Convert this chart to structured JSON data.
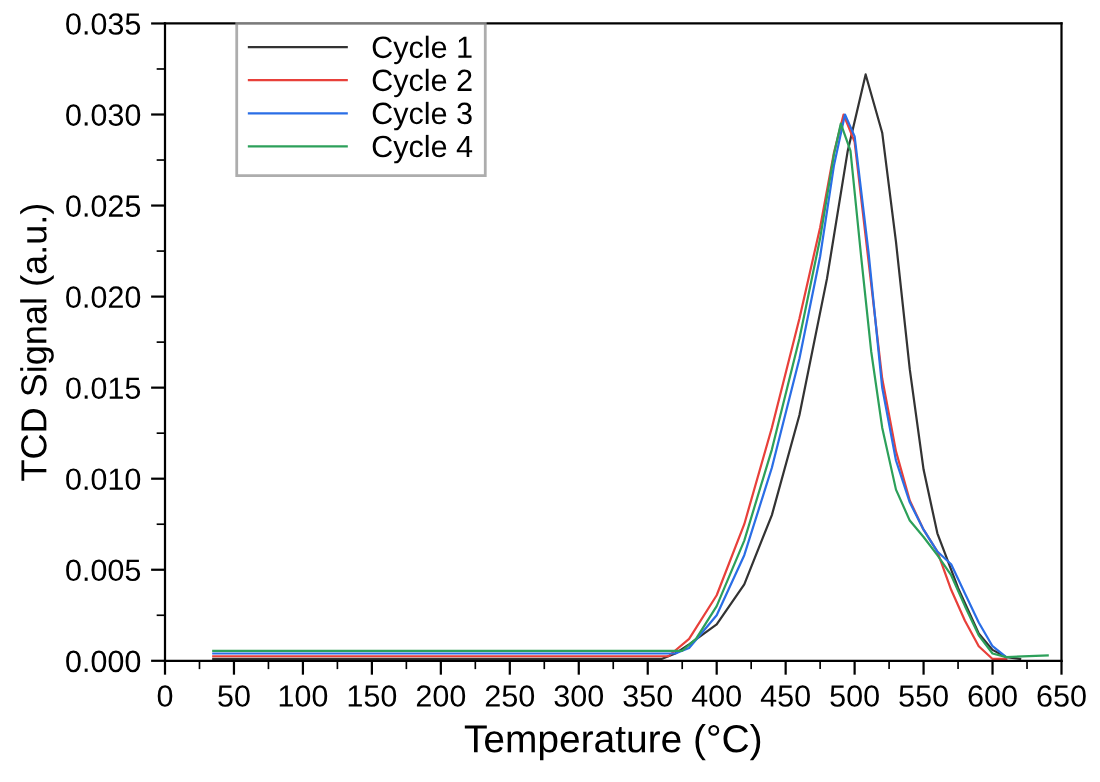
{
  "chart_data": {
    "type": "line",
    "xlabel": "Temperature (°C)",
    "ylabel": "TCD Signal (a.u.)",
    "xlim": [
      0,
      650
    ],
    "xticks": [
      0,
      50,
      100,
      150,
      200,
      250,
      300,
      350,
      400,
      450,
      500,
      550,
      600,
      650
    ],
    "ylim": [
      0,
      0.035
    ],
    "yticks": [
      {
        "value": 0,
        "label": "0.000"
      },
      {
        "value": 0.005,
        "label": "0.005"
      },
      {
        "value": 0.01,
        "label": "0.010"
      },
      {
        "value": 0.015,
        "label": "0.015"
      },
      {
        "value": 0.02,
        "label": "0.020"
      },
      {
        "value": 0.025,
        "label": "0.025"
      },
      {
        "value": 0.03,
        "label": "0.030"
      },
      {
        "value": 0.035,
        "label": "0.035"
      }
    ],
    "grid": false,
    "legend": "top left",
    "line_style": "solid",
    "marker": "none",
    "series": [
      {
        "name": "Cycle 1",
        "color": "#333333",
        "x": [
          35,
          100,
          200,
          300,
          360,
          370,
          380,
          400,
          420,
          440,
          460,
          480,
          495,
          508,
          520,
          530,
          540,
          550,
          560,
          575,
          590,
          600,
          610,
          620
        ],
        "values": [
          0.0001,
          0.0001,
          0.0001,
          0.0001,
          0.0001,
          0.0004,
          0.0009,
          0.002,
          0.0042,
          0.008,
          0.0135,
          0.021,
          0.028,
          0.0322,
          0.029,
          0.023,
          0.016,
          0.0105,
          0.007,
          0.004,
          0.0015,
          0.0006,
          0.0002,
          0.0001
        ]
      },
      {
        "name": "Cycle 2",
        "color": "#e8403a",
        "x": [
          35,
          100,
          200,
          300,
          365,
          380,
          400,
          420,
          440,
          460,
          475,
          485,
          492,
          500,
          510,
          520,
          530,
          540,
          550,
          560,
          570,
          580,
          590,
          600,
          610
        ],
        "values": [
          0.00025,
          0.00025,
          0.00025,
          0.00025,
          0.00025,
          0.0012,
          0.0036,
          0.0075,
          0.0128,
          0.0188,
          0.0238,
          0.0279,
          0.03,
          0.0285,
          0.022,
          0.0155,
          0.0115,
          0.0088,
          0.0072,
          0.006,
          0.0039,
          0.0022,
          0.0008,
          0.0001,
          0.0001
        ]
      },
      {
        "name": "Cycle 3",
        "color": "#2a6ee6",
        "x": [
          35,
          100,
          200,
          300,
          370,
          380,
          400,
          420,
          440,
          460,
          475,
          485,
          493,
          500,
          510,
          520,
          530,
          540,
          550,
          560,
          570,
          580,
          590,
          600,
          610
        ],
        "values": [
          0.0004,
          0.0004,
          0.0004,
          0.0004,
          0.0004,
          0.0007,
          0.0025,
          0.0058,
          0.0106,
          0.0166,
          0.0222,
          0.0272,
          0.03,
          0.0288,
          0.0225,
          0.015,
          0.011,
          0.0087,
          0.0072,
          0.006,
          0.0053,
          0.0037,
          0.0021,
          0.0008,
          0.0002
        ]
      },
      {
        "name": "Cycle 4",
        "color": "#2ca05a",
        "x": [
          35,
          100,
          200,
          300,
          375,
          385,
          400,
          420,
          440,
          460,
          475,
          485,
          490,
          497,
          505,
          512,
          520,
          530,
          540,
          550,
          560,
          570,
          580,
          590,
          600,
          610,
          640
        ],
        "values": [
          0.00055,
          0.00055,
          0.00055,
          0.00055,
          0.00055,
          0.0012,
          0.003,
          0.0066,
          0.0116,
          0.0177,
          0.0232,
          0.0278,
          0.0295,
          0.028,
          0.022,
          0.017,
          0.0128,
          0.0094,
          0.0077,
          0.0068,
          0.0058,
          0.0047,
          0.003,
          0.0014,
          0.0004,
          0.0002,
          0.0003
        ]
      }
    ]
  }
}
